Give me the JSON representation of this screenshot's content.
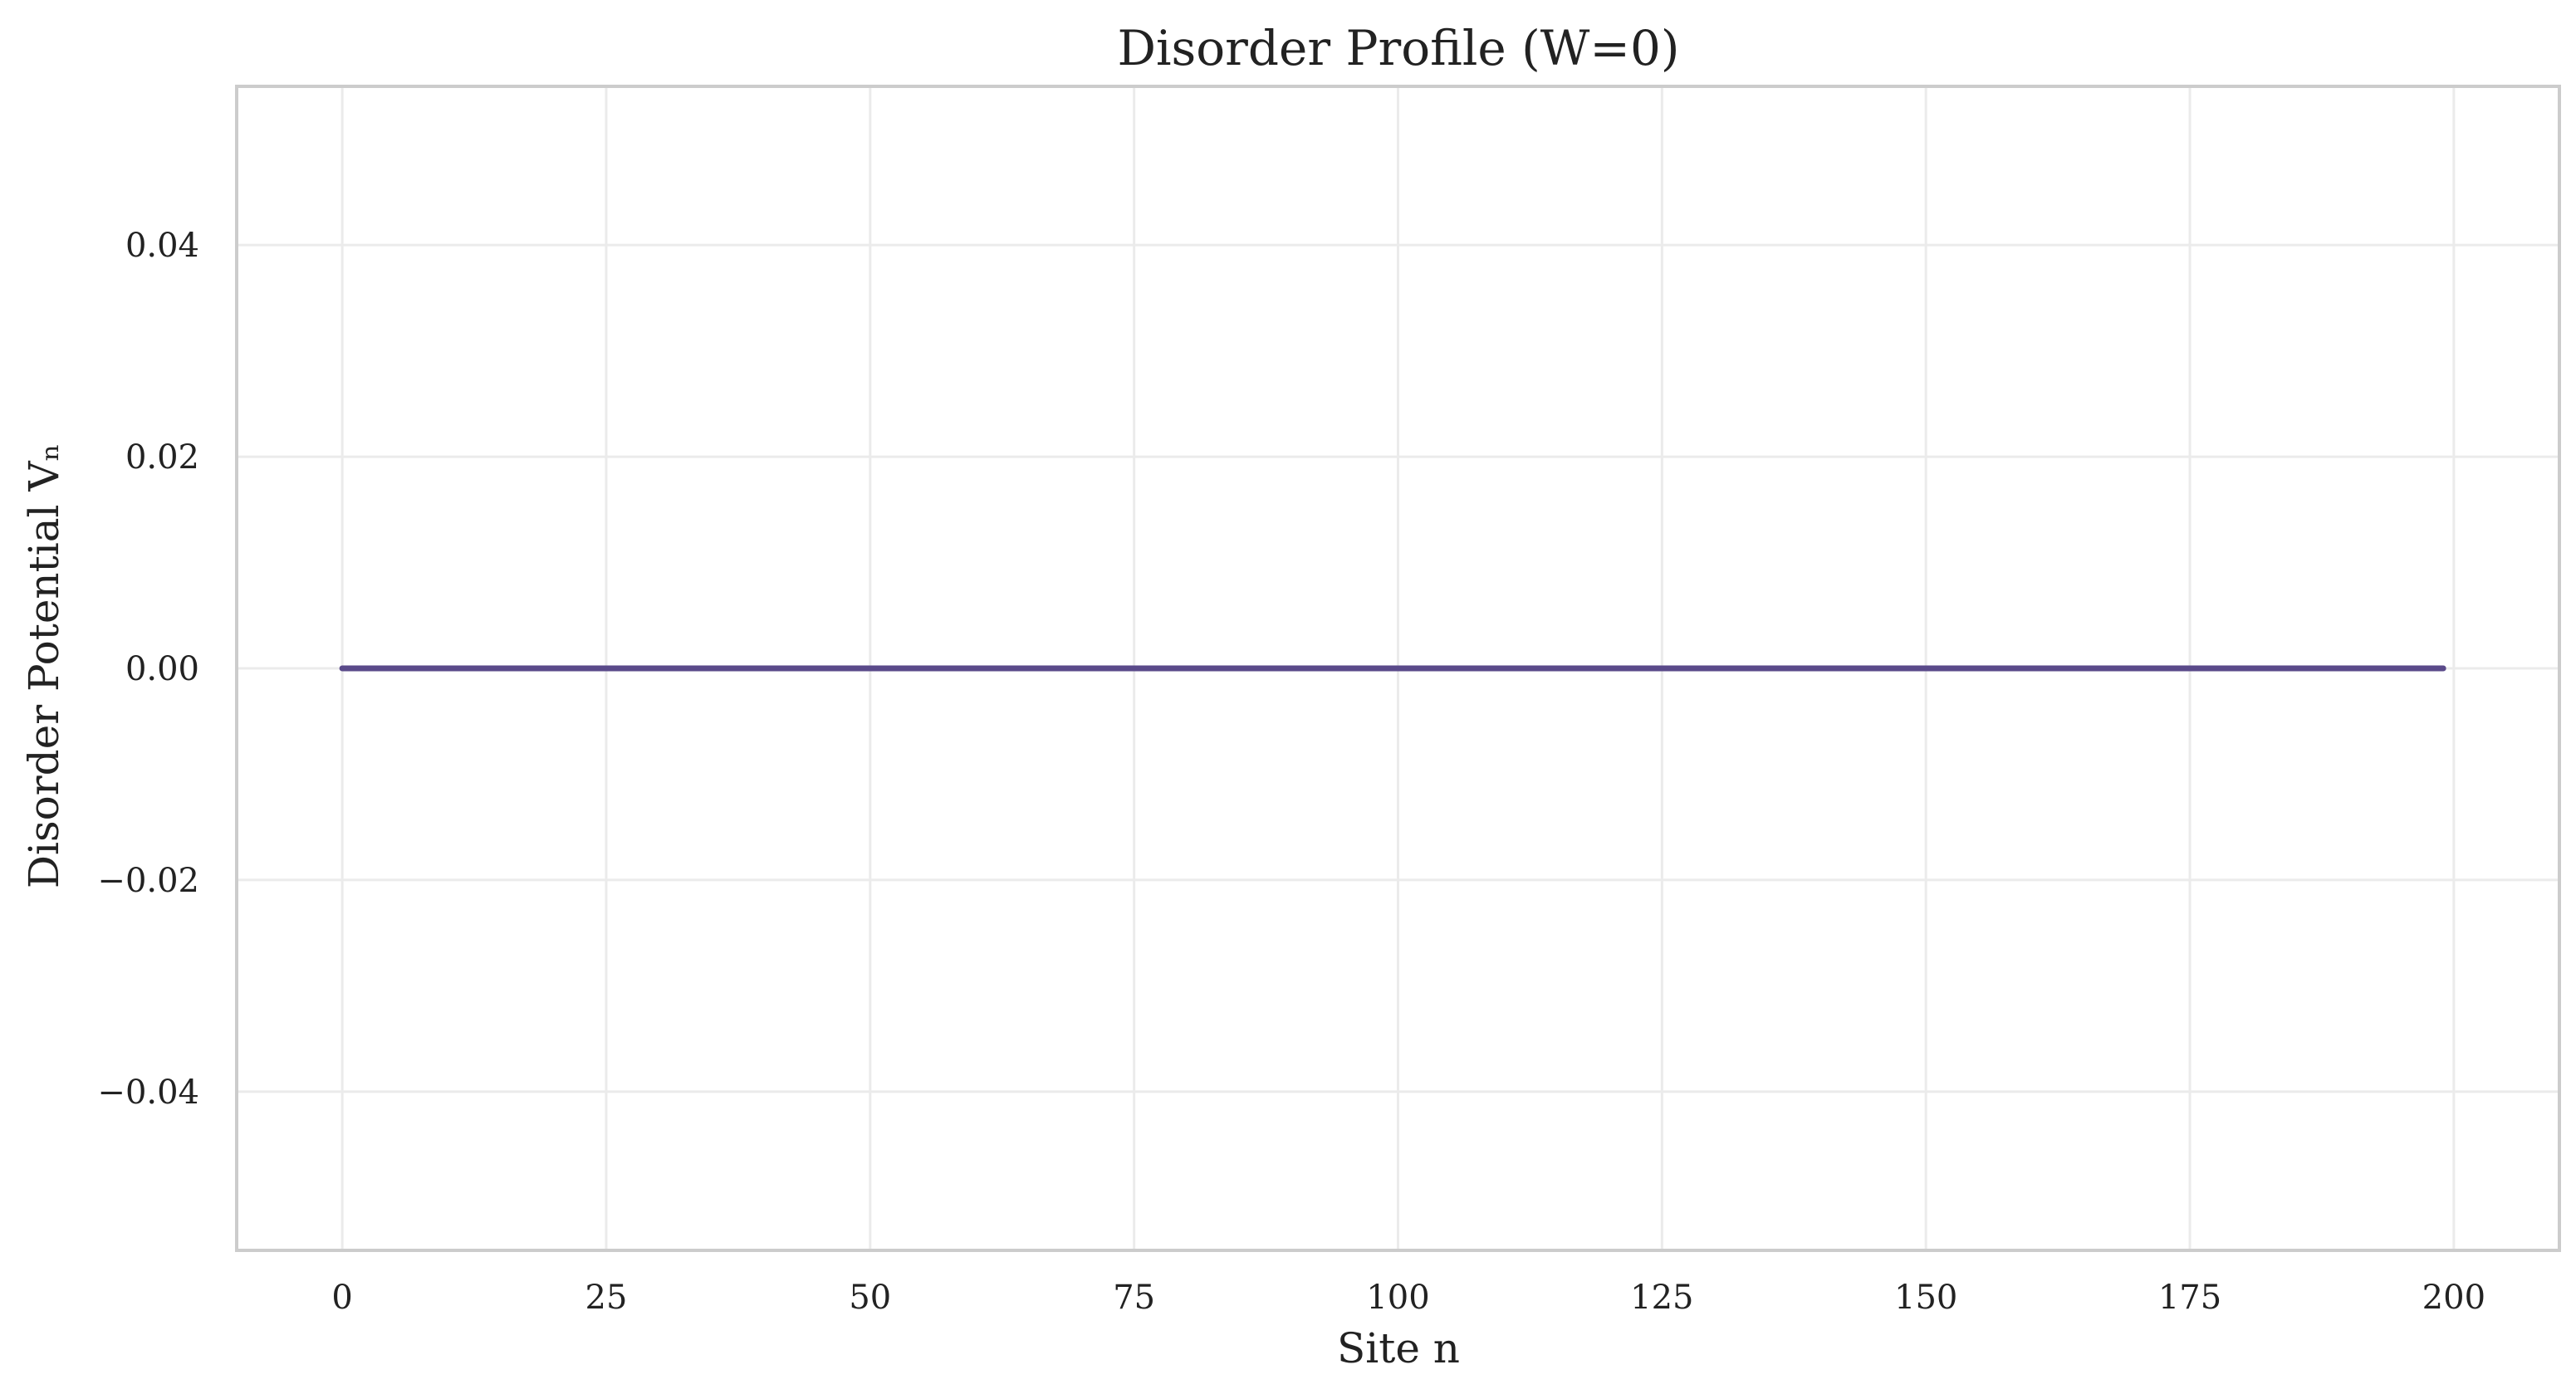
{
  "chart_data": {
    "type": "line",
    "title": "Disorder Profile (W=0)",
    "xlabel": "Site n",
    "ylabel": "Disorder Potential Vₙ",
    "xlim": [
      -10,
      210
    ],
    "ylim": [
      -0.055,
      0.055
    ],
    "xticks": [
      0,
      25,
      50,
      75,
      100,
      125,
      150,
      175,
      200
    ],
    "xtick_labels": [
      "0",
      "25",
      "50",
      "75",
      "100",
      "125",
      "150",
      "175",
      "200"
    ],
    "yticks": [
      -0.04,
      -0.02,
      0.0,
      0.02,
      0.04
    ],
    "ytick_labels": [
      "−0.04",
      "−0.02",
      "0.00",
      "0.02",
      "0.04"
    ],
    "grid": true,
    "series": [
      {
        "color": "#5a4a8a",
        "x_start": 0,
        "x_end": 199,
        "x_step": 1,
        "y_constant": 0.0
      }
    ],
    "colors": {
      "axis": "#cccccc",
      "grid": "#ebebeb",
      "text": "#222222"
    }
  }
}
